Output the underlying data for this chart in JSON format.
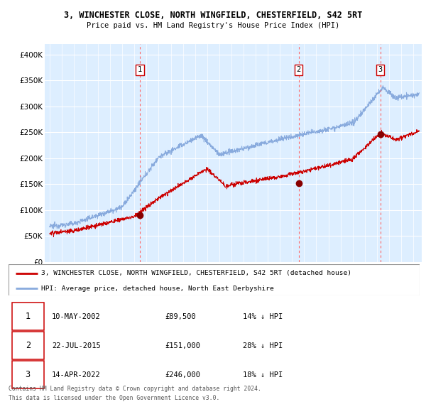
{
  "title_line1": "3, WINCHESTER CLOSE, NORTH WINGFIELD, CHESTERFIELD, S42 5RT",
  "title_line2": "Price paid vs. HM Land Registry's House Price Index (HPI)",
  "legend_house": "3, WINCHESTER CLOSE, NORTH WINGFIELD, CHESTERFIELD, S42 5RT (detached house)",
  "legend_hpi": "HPI: Average price, detached house, North East Derbyshire",
  "transactions": [
    {
      "num": 1,
      "date": "10-MAY-2002",
      "price": "£89,500",
      "pct": "14% ↓ HPI",
      "year": 2002.45
    },
    {
      "num": 2,
      "date": "22-JUL-2015",
      "price": "£151,000",
      "pct": "28% ↓ HPI",
      "year": 2015.55
    },
    {
      "num": 3,
      "date": "14-APR-2022",
      "price": "£246,000",
      "pct": "18% ↓ HPI",
      "year": 2022.28
    }
  ],
  "marker_prices": [
    89500,
    151000,
    246000
  ],
  "footer_line1": "Contains HM Land Registry data © Crown copyright and database right 2024.",
  "footer_line2": "This data is licensed under the Open Government Licence v3.0.",
  "ylim": [
    0,
    420000
  ],
  "yticks": [
    0,
    50000,
    100000,
    150000,
    200000,
    250000,
    300000,
    350000,
    400000
  ],
  "xlim_start": 1994.6,
  "xlim_end": 2025.7,
  "price_line_color": "#cc0000",
  "hpi_line_color": "#88aadd",
  "vline_color": "#ff6666",
  "marker_color": "#880000",
  "chart_bg_color": "#ddeeff",
  "grid_color": "#ffffff",
  "box_edge_color": "#cc0000"
}
